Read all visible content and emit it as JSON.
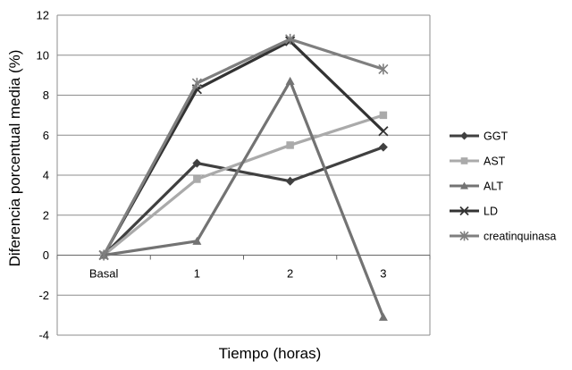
{
  "chart_data": {
    "type": "line",
    "title": "",
    "xlabel": "Tiempo (horas)",
    "ylabel": "Diferencia porcentual media (%)",
    "categories": [
      "Basal",
      "1",
      "2",
      "3"
    ],
    "ylim": [
      -4,
      12
    ],
    "yticks": [
      -4,
      -2,
      0,
      2,
      4,
      6,
      8,
      10,
      12
    ],
    "grid": "horizontal",
    "legend_position": "right",
    "series": [
      {
        "name": "GGT",
        "values": [
          0,
          4.6,
          3.7,
          5.4
        ],
        "color": "#404040",
        "marker": "diamond"
      },
      {
        "name": "AST",
        "values": [
          0,
          3.8,
          5.5,
          7.0
        ],
        "color": "#aaaaaa",
        "marker": "square"
      },
      {
        "name": "ALT",
        "values": [
          0,
          0.7,
          8.7,
          -3.1
        ],
        "color": "#737373",
        "marker": "triangle"
      },
      {
        "name": "LD",
        "values": [
          0,
          8.3,
          10.7,
          6.2
        ],
        "color": "#333333",
        "marker": "x"
      },
      {
        "name": "creatinquinasa",
        "values": [
          0,
          8.6,
          10.8,
          9.3
        ],
        "color": "#7f7f7f",
        "marker": "star"
      }
    ]
  }
}
